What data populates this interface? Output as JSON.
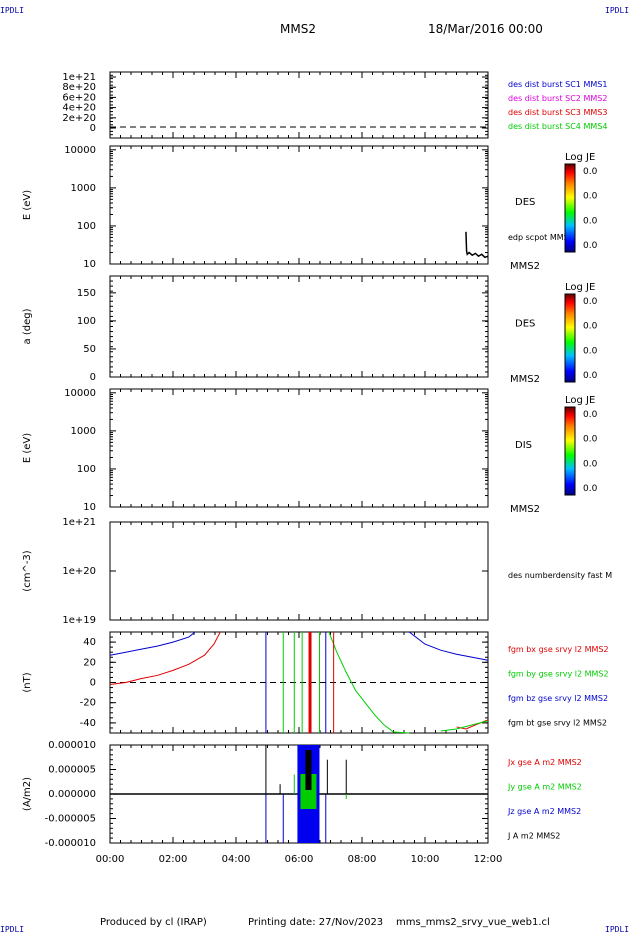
{
  "header": {
    "corner_left": "IPDLI",
    "corner_right": "IPDLI",
    "spacecraft": "MMS2",
    "date": "18/Mar/2016 00:00"
  },
  "footer": {
    "credit": "Produced by cl (IRAP)",
    "printing": "Printing date: 27/Nov/2023",
    "file": "mms_mms2_srvy_vue_web1.cl",
    "corner_left": "IPDLI",
    "corner_right": "IPDLI"
  },
  "time_axis": [
    "00:00",
    "02:00",
    "04:00",
    "06:00",
    "08:00",
    "10:00",
    "12:00"
  ],
  "colors": {
    "red": "#e00000",
    "green": "#00cc00",
    "blue": "#0000cc",
    "magenta": "#dd00dd",
    "black": "#000000"
  },
  "chart_data": [
    {
      "type": "line",
      "panel": 1,
      "ylabel": "",
      "yticks": [
        "1e+21",
        "8e+20",
        "6e+20",
        "4e+20",
        "2e+20",
        "0"
      ],
      "legend": [
        {
          "text": "des dist burst SC1 MMS1",
          "color": "#0000cc"
        },
        {
          "text": "des dist burst SC2 MMS2",
          "color": "#dd00dd"
        },
        {
          "text": "des dist burst SC3 MMS3",
          "color": "#e00000"
        },
        {
          "text": "des dist burst SC4 MMS4",
          "color": "#00cc00"
        }
      ],
      "reference_line": 0
    },
    {
      "type": "heatmap",
      "panel": 2,
      "ylabel": "E (eV)",
      "yscale": "log",
      "yticks": [
        "10000",
        "1000",
        "100",
        "10"
      ],
      "label": "DES",
      "secondary_label": "edp scpot MMS2",
      "sc_label": "MMS2",
      "colorbar": {
        "title": "Log JE",
        "ticks": [
          "0.0",
          "0.0",
          "0.0",
          "0.0"
        ]
      },
      "x_hours": [
        11.3,
        11.32,
        11.34,
        11.4,
        11.5,
        11.6,
        11.7,
        11.8,
        11.9,
        12.0
      ],
      "y": [
        70,
        22,
        18,
        20,
        17,
        19,
        16,
        18,
        15,
        16
      ]
    },
    {
      "type": "heatmap",
      "panel": 3,
      "ylabel": "a (deg)",
      "yticks": [
        "150",
        "100",
        "50",
        "0"
      ],
      "label": "DES",
      "sc_label": "MMS2",
      "colorbar": {
        "title": "Log JE",
        "ticks": [
          "0.0",
          "0.0",
          "0.0",
          "0.0"
        ]
      }
    },
    {
      "type": "heatmap",
      "panel": 4,
      "ylabel": "E (eV)",
      "yscale": "log",
      "yticks": [
        "10000",
        "1000",
        "100",
        "10"
      ],
      "label": "DIS",
      "sc_label": "MMS2",
      "colorbar": {
        "title": "Log JE",
        "ticks": [
          "0.0",
          "0.0",
          "0.0",
          "0.0"
        ]
      }
    },
    {
      "type": "line",
      "panel": 5,
      "ylabel": "(cm^-3)",
      "yscale": "log",
      "yticks": [
        "1e+21",
        "1e+20",
        "1e+19"
      ],
      "legend": [
        {
          "text": "des numberdensity fast M",
          "color": "#000000"
        }
      ]
    },
    {
      "type": "line",
      "panel": 6,
      "ylabel": "(nT)",
      "yticks": [
        "40",
        "20",
        "0",
        "-20",
        "-40"
      ],
      "ylim": [
        -50,
        50
      ],
      "legend": [
        {
          "text": "fgm bx gse srvy l2 MMS2",
          "color": "#e00000"
        },
        {
          "text": "fgm by gse srvy l2 MMS2",
          "color": "#00cc00"
        },
        {
          "text": "fgm bz gse srvy l2 MMS2",
          "color": "#0000cc"
        },
        {
          "text": "fgm bt gse srvy l2 MMS2",
          "color": "#000000"
        }
      ],
      "series": [
        {
          "name": "fgm bx gse srvy l2 MMS2",
          "color": "#e00000",
          "x": [
            0,
            0.5,
            1.0,
            1.5,
            2.0,
            2.5,
            3.0,
            3.3,
            3.5
          ],
          "y": [
            -2,
            0,
            4,
            7,
            12,
            18,
            27,
            38,
            50
          ]
        },
        {
          "name": "fgm bx gse srvy l2 MMS2 (late)",
          "color": "#e00000",
          "x": [
            11.0,
            11.3,
            11.6,
            12.0
          ],
          "y": [
            -44,
            -46,
            -42,
            -37
          ]
        },
        {
          "name": "fgm by gse srvy l2 MMS2",
          "color": "#00cc00",
          "x": [
            6.95,
            7.2,
            7.5,
            7.8,
            8.1,
            8.4,
            8.7,
            9.0,
            9.5
          ],
          "y": [
            50,
            30,
            10,
            -8,
            -20,
            -32,
            -42,
            -49,
            -50
          ]
        },
        {
          "name": "fgm by gse srvy l2 MMS2 (late)",
          "color": "#00cc00",
          "x": [
            10.5,
            11.0,
            11.5,
            12.0
          ],
          "y": [
            -48,
            -46,
            -42,
            -38
          ]
        },
        {
          "name": "fgm bz gse srvy l2 MMS2",
          "color": "#0000cc",
          "x": [
            0,
            0.5,
            1.0,
            1.5,
            2.0,
            2.5,
            2.7
          ],
          "y": [
            27,
            30,
            33,
            36,
            40,
            45,
            50
          ]
        },
        {
          "name": "fgm bz gse srvy l2 MMS2 (late)",
          "color": "#0000cc",
          "x": [
            9.5,
            10.0,
            10.5,
            11.0,
            11.5,
            12.0
          ],
          "y": [
            50,
            38,
            32,
            28,
            25,
            22
          ]
        }
      ],
      "spikes": [
        {
          "x": 4.95,
          "color": "#0000cc"
        },
        {
          "x": 5.5,
          "color": "#00cc00"
        },
        {
          "x": 5.85,
          "color": "#00cc00"
        },
        {
          "x": 6.1,
          "color": "#00cc00"
        },
        {
          "x": 6.35,
          "color": "#e00000",
          "wide": true
        },
        {
          "x": 6.65,
          "color": "#00cc00"
        },
        {
          "x": 6.85,
          "color": "#0000cc"
        },
        {
          "x": 7.1,
          "color": "#e00000"
        }
      ],
      "reference_line": 0
    },
    {
      "type": "line",
      "panel": 7,
      "ylabel": "(A/m2)",
      "yticks": [
        "0.000010",
        "0.000005",
        "0.000000",
        "-0.000005",
        "-0.000010"
      ],
      "ylim": [
        -1e-05,
        1e-05
      ],
      "legend": [
        {
          "text": "Jx gse A m2 MMS2",
          "color": "#e00000"
        },
        {
          "text": "Jy gse A m2 MMS2",
          "color": "#00cc00"
        },
        {
          "text": "Jz gse A m2 MMS2",
          "color": "#0000cc"
        },
        {
          "text": "J A m2 MMS2",
          "color": "#000000"
        }
      ],
      "burst_band": {
        "x_start": 5.95,
        "x_end": 6.65,
        "ylim": [
          -1e-05,
          1e-05
        ]
      },
      "spikes": [
        {
          "x": 4.95,
          "color": "#0000cc",
          "y": -1e-05
        },
        {
          "x": 4.95,
          "color": "#000000",
          "y": 1e-05
        },
        {
          "x": 5.4,
          "color": "#000000",
          "y": 2e-06
        },
        {
          "x": 5.5,
          "color": "#0000cc",
          "y": -1e-05
        },
        {
          "x": 5.85,
          "color": "#00cc00",
          "y": 4e-06
        },
        {
          "x": 6.85,
          "color": "#0000cc",
          "y": -1e-05
        },
        {
          "x": 6.9,
          "color": "#000000",
          "y": 7e-06
        },
        {
          "x": 7.5,
          "color": "#000000",
          "y": 7e-06
        },
        {
          "x": 7.5,
          "color": "#00cc00",
          "y": -1e-06
        }
      ]
    }
  ]
}
